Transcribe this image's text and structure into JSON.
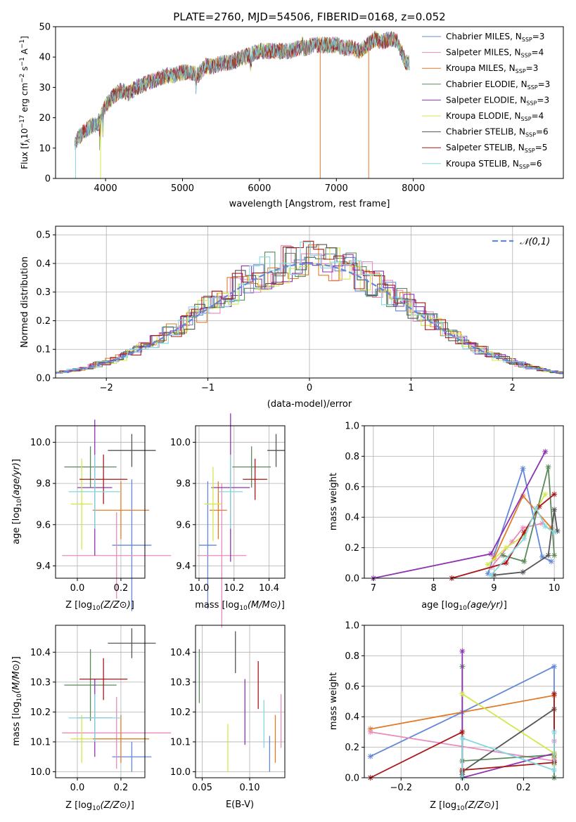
{
  "colors": {
    "blue": "#6487d9",
    "orange": "#e07b2a",
    "pink": "#e88bbd",
    "green": "#5a8a5a",
    "purple": "#8e33b0",
    "yellow": "#d4e84a",
    "dark": "#555555",
    "red": "#a81818",
    "cyan": "#84d8e0"
  },
  "chart_data": [
    {
      "id": "spectrum",
      "type": "line",
      "title": "PLATE=2760, MJD=54506, FIBERID=0168, z=0.052",
      "xlabel": "wavelength [Angstrom, rest frame]",
      "ylabel_parts": [
        "Flux [f",
        "λ",
        "10",
        "−17",
        " erg cm",
        "−2",
        " s",
        "−1",
        " A",
        "−1",
        "]"
      ],
      "xlim": [
        3350,
        9950
      ],
      "ylim": [
        0,
        50
      ],
      "xticks": [
        4000,
        5000,
        6000,
        7000,
        8000
      ],
      "yticks": [
        0,
        10,
        20,
        30,
        40,
        50
      ],
      "grid": false,
      "legend_position": "upper-right",
      "continuum": {
        "x": [
          3600,
          3700,
          3800,
          3900,
          4000,
          4100,
          4200,
          4300,
          4400,
          4500,
          4600,
          4700,
          4800,
          4900,
          5000,
          5100,
          5200,
          5300,
          5400,
          5500,
          5600,
          5700,
          5800,
          5900,
          6000,
          6100,
          6200,
          6300,
          6400,
          6500,
          6600,
          6700,
          6800,
          6900,
          7000,
          7100,
          7200,
          7300,
          7400,
          7500,
          7600,
          7700,
          7800,
          7900
        ],
        "y": [
          12,
          15,
          17,
          18,
          24,
          27,
          29,
          28,
          30,
          31,
          32,
          33,
          34,
          34,
          35,
          35,
          34,
          37,
          37,
          38,
          38,
          39,
          40,
          41,
          42,
          42,
          42,
          42,
          42,
          43,
          43,
          44,
          44,
          44,
          44,
          43,
          43,
          42,
          44,
          46,
          45,
          46,
          45,
          38
        ]
      },
      "series": [
        {
          "name": "Chabrier MILES",
          "nssp": "3",
          "color": "blue"
        },
        {
          "name": "Salpeter MILES",
          "nssp": "4",
          "color": "pink"
        },
        {
          "name": "Kroupa MILES",
          "nssp": "3",
          "color": "orange"
        },
        {
          "name": "Chabrier ELODIE",
          "nssp": "3",
          "color": "green"
        },
        {
          "name": "Salpeter ELODIE",
          "nssp": "3",
          "color": "purple"
        },
        {
          "name": "Kroupa ELODIE",
          "nssp": "4",
          "color": "yellow"
        },
        {
          "name": "Chabrier STELIB",
          "nssp": "6",
          "color": "dark"
        },
        {
          "name": "Salpeter STELIB",
          "nssp": "5",
          "color": "red"
        },
        {
          "name": "Kroupa STELIB",
          "nssp": "6",
          "color": "cyan"
        }
      ],
      "nssp_label_parts": [
        ", N",
        "SSP",
        "="
      ]
    },
    {
      "id": "residuals",
      "type": "histogram",
      "xlabel": "(data-model)/error",
      "ylabel": "Normed distribution",
      "xlim": [
        -2.5,
        2.5
      ],
      "ylim": [
        0,
        0.53
      ],
      "xticks": [
        -2,
        -1,
        0,
        1,
        2
      ],
      "yticks": [
        0.0,
        0.1,
        0.2,
        0.3,
        0.4,
        0.5
      ],
      "grid": true,
      "legend_position": "upper-right",
      "reference_curve": {
        "label": "𝒩(0,1)",
        "color": "blue",
        "style": "dashed"
      },
      "bin_width": 0.1
    },
    {
      "id": "z-age",
      "type": "errorbar",
      "xlabel": "Z [log10(Z/Z⊙)]",
      "ylabel": "age  [log10(age/yr)]",
      "xlim": [
        -0.1,
        0.31
      ],
      "ylim": [
        9.34,
        10.08
      ],
      "xticks": [
        0.0,
        0.2
      ],
      "yticks": [
        9.4,
        9.6,
        9.8,
        10.0
      ],
      "points": [
        {
          "color": "blue",
          "x": 0.25,
          "xerr": 0.09,
          "y": 9.5,
          "yerr": 0.32
        },
        {
          "color": "pink",
          "x": 0.18,
          "xerr": 0.25,
          "y": 9.45,
          "yerr": 0.21
        },
        {
          "color": "orange",
          "x": 0.2,
          "xerr": 0.13,
          "y": 9.67,
          "yerr": 0.14
        },
        {
          "color": "green",
          "x": 0.06,
          "xerr": 0.12,
          "y": 9.88,
          "yerr": 0.1
        },
        {
          "color": "purple",
          "x": 0.08,
          "xerr": 0.08,
          "y": 9.78,
          "yerr": 0.33
        },
        {
          "color": "yellow",
          "x": 0.02,
          "xerr": 0.05,
          "y": 9.7,
          "yerr": 0.22
        },
        {
          "color": "dark",
          "x": 0.25,
          "xerr": 0.11,
          "y": 9.96,
          "yerr": 0.08
        },
        {
          "color": "red",
          "x": 0.12,
          "xerr": 0.11,
          "y": 9.82,
          "yerr": 0.12
        },
        {
          "color": "cyan",
          "x": 0.08,
          "xerr": 0.12,
          "y": 9.76,
          "yerr": 0.18
        }
      ]
    },
    {
      "id": "mass-age",
      "type": "errorbar",
      "xlabel": "mass [log10(M/M⊙)]",
      "ylabel": "",
      "xlim": [
        9.98,
        10.49
      ],
      "ylim": [
        9.34,
        10.08
      ],
      "xticks": [
        10.0,
        10.2,
        10.4
      ],
      "yticks": [
        9.4,
        9.6,
        9.8,
        10.0
      ],
      "points": [
        {
          "color": "blue",
          "x": 10.05,
          "xerr": 0.05,
          "y": 9.5,
          "yerr": 0.31
        },
        {
          "color": "pink",
          "x": 10.13,
          "xerr": 0.14,
          "y": 9.45,
          "yerr": 0.35
        },
        {
          "color": "orange",
          "x": 10.11,
          "xerr": 0.05,
          "y": 9.67,
          "yerr": 0.14
        },
        {
          "color": "green",
          "x": 10.3,
          "xerr": 0.11,
          "y": 9.88,
          "yerr": 0.1
        },
        {
          "color": "purple",
          "x": 10.18,
          "xerr": 0.11,
          "y": 9.78,
          "yerr": 0.36
        },
        {
          "color": "yellow",
          "x": 10.08,
          "xerr": 0.05,
          "y": 9.7,
          "yerr": 0.18
        },
        {
          "color": "dark",
          "x": 10.44,
          "xerr": 0.05,
          "y": 9.96,
          "yerr": 0.08
        },
        {
          "color": "red",
          "x": 10.32,
          "xerr": 0.07,
          "y": 9.82,
          "yerr": 0.1
        },
        {
          "color": "cyan",
          "x": 10.18,
          "xerr": 0.07,
          "y": 9.76,
          "yerr": 0.18
        }
      ]
    },
    {
      "id": "age-weight",
      "type": "line",
      "xlabel": "age  [log10(age/yr)]",
      "ylabel": "mass weight",
      "xlim": [
        6.85,
        10.15
      ],
      "ylim": [
        0,
        1.0
      ],
      "xticks": [
        7,
        8,
        9,
        10
      ],
      "yticks": [
        0.0,
        0.2,
        0.4,
        0.6,
        0.8,
        1.0
      ],
      "grid": true,
      "series": [
        {
          "color": "blue",
          "x": [
            8.9,
            9.48,
            9.8,
            9.95
          ],
          "y": [
            0.03,
            0.72,
            0.14,
            0.11
          ]
        },
        {
          "color": "orange",
          "x": [
            9.0,
            9.48,
            9.95
          ],
          "y": [
            0.13,
            0.54,
            0.33
          ]
        },
        {
          "color": "pink",
          "x": [
            8.95,
            9.3,
            9.48,
            9.8
          ],
          "y": [
            0.07,
            0.24,
            0.33,
            0.36
          ]
        },
        {
          "color": "green",
          "x": [
            9.15,
            9.5,
            9.9,
            10.0
          ],
          "y": [
            0.15,
            0.11,
            0.73,
            0.15
          ]
        },
        {
          "color": "purple",
          "x": [
            7.0,
            8.95,
            9.85
          ],
          "y": [
            0.0,
            0.16,
            0.83
          ]
        },
        {
          "color": "yellow",
          "x": [
            8.9,
            9.2,
            9.5,
            9.7,
            9.85
          ],
          "y": [
            0.09,
            0.2,
            0.28,
            0.45,
            0.55
          ]
        },
        {
          "color": "dark",
          "x": [
            9.0,
            9.48,
            9.9,
            10.0,
            10.05
          ],
          "y": [
            0.02,
            0.04,
            0.15,
            0.45,
            0.31
          ]
        },
        {
          "color": "red",
          "x": [
            8.3,
            9.2,
            9.5,
            9.75,
            10.0
          ],
          "y": [
            0.0,
            0.1,
            0.3,
            0.47,
            0.55
          ]
        },
        {
          "color": "cyan",
          "x": [
            8.95,
            9.5,
            9.7,
            9.85,
            10.0
          ],
          "y": [
            0.02,
            0.26,
            0.46,
            0.34,
            0.3
          ]
        }
      ]
    },
    {
      "id": "z-mass",
      "type": "errorbar",
      "xlabel": "Z [log10(Z/Z⊙)]",
      "ylabel": "mass [log10(M/M⊙)]",
      "xlim": [
        -0.1,
        0.31
      ],
      "ylim": [
        9.98,
        10.49
      ],
      "xticks": [
        0.0,
        0.2
      ],
      "yticks": [
        10.0,
        10.1,
        10.2,
        10.3,
        10.4
      ],
      "points": [
        {
          "color": "blue",
          "x": 0.25,
          "xerr": 0.09,
          "y": 10.05,
          "yerr": 0.05
        },
        {
          "color": "pink",
          "x": 0.18,
          "xerr": 0.25,
          "y": 10.13,
          "yerr": 0.12
        },
        {
          "color": "orange",
          "x": 0.2,
          "xerr": 0.13,
          "y": 10.11,
          "yerr": 0.08
        },
        {
          "color": "green",
          "x": 0.06,
          "xerr": 0.12,
          "y": 10.29,
          "yerr": 0.12
        },
        {
          "color": "purple",
          "x": 0.08,
          "xerr": 0.08,
          "y": 10.18,
          "yerr": 0.13
        },
        {
          "color": "yellow",
          "x": 0.02,
          "xerr": 0.05,
          "y": 10.11,
          "yerr": 0.08
        },
        {
          "color": "dark",
          "x": 0.25,
          "xerr": 0.11,
          "y": 10.43,
          "yerr": 0.05
        },
        {
          "color": "red",
          "x": 0.12,
          "xerr": 0.11,
          "y": 10.31,
          "yerr": 0.07
        },
        {
          "color": "cyan",
          "x": 0.08,
          "xerr": 0.12,
          "y": 10.18,
          "yerr": 0.08
        }
      ]
    },
    {
      "id": "ebv-mass",
      "type": "errorbar",
      "xlabel": "E(B-V)",
      "ylabel": "",
      "xlim": [
        0.043,
        0.137
      ],
      "ylim": [
        9.98,
        10.49
      ],
      "xticks": [
        0.05,
        0.1
      ],
      "yticks": [
        10.0,
        10.1,
        10.2,
        10.3,
        10.4
      ],
      "points": [
        {
          "color": "green",
          "x": 0.047,
          "xerr": 0,
          "y": 10.32,
          "yerr": 0.09
        },
        {
          "color": "yellow",
          "x": 0.077,
          "xerr": 0,
          "y": 10.08,
          "yerr": 0.08
        },
        {
          "color": "dark",
          "x": 0.085,
          "xerr": 0,
          "y": 10.4,
          "yerr": 0.07
        },
        {
          "color": "purple",
          "x": 0.095,
          "xerr": 0,
          "y": 10.2,
          "yerr": 0.11
        },
        {
          "color": "red",
          "x": 0.109,
          "xerr": 0,
          "y": 10.29,
          "yerr": 0.08
        },
        {
          "color": "cyan",
          "x": 0.115,
          "xerr": 0,
          "y": 10.16,
          "yerr": 0.08
        },
        {
          "color": "blue",
          "x": 0.121,
          "xerr": 0,
          "y": 10.06,
          "yerr": 0.06
        },
        {
          "color": "orange",
          "x": 0.127,
          "xerr": 0,
          "y": 10.11,
          "yerr": 0.08
        },
        {
          "color": "pink",
          "x": 0.133,
          "xerr": 0,
          "y": 10.17,
          "yerr": 0.09
        }
      ]
    },
    {
      "id": "z-weight",
      "type": "line",
      "xlabel": "Z [log10(Z/Z⊙)]",
      "ylabel": "mass weight",
      "xlim": [
        -0.32,
        0.33
      ],
      "ylim": [
        0,
        1.0
      ],
      "xticks": [
        -0.2,
        0.0,
        0.2
      ],
      "yticks": [
        0.0,
        0.2,
        0.4,
        0.6,
        0.8,
        1.0
      ],
      "grid": true,
      "series": [
        {
          "color": "blue",
          "x": [
            -0.3,
            0.0,
            0.3,
            0.3
          ],
          "y": [
            0.14,
            0.43,
            0.73,
            0.11
          ]
        },
        {
          "color": "orange",
          "x": [
            -0.3,
            0.3,
            0.3
          ],
          "y": [
            0.32,
            0.54,
            0.13
          ]
        },
        {
          "color": "pink",
          "x": [
            -0.3,
            0.3,
            0.3
          ],
          "y": [
            0.3,
            0.11,
            0.24
          ]
        },
        {
          "color": "green",
          "x": [
            0.0,
            0.0,
            0.3,
            0.3
          ],
          "y": [
            0.73,
            0.11,
            0.15,
            0.0
          ]
        },
        {
          "color": "purple",
          "x": [
            0.0,
            0.0,
            0.3,
            0.3
          ],
          "y": [
            0.83,
            0.0,
            0.16,
            0.09
          ]
        },
        {
          "color": "yellow",
          "x": [
            0.0,
            0.3,
            0.3
          ],
          "y": [
            0.55,
            0.16,
            0.09
          ]
        },
        {
          "color": "dark",
          "x": [
            0.0,
            0.0,
            0.3,
            0.3
          ],
          "y": [
            0.02,
            0.04,
            0.45,
            0.1
          ]
        },
        {
          "color": "red",
          "x": [
            -0.3,
            0.0,
            0.0,
            0.3,
            0.3
          ],
          "y": [
            0.0,
            0.3,
            0.05,
            0.1,
            0.55
          ]
        },
        {
          "color": "cyan",
          "x": [
            0.0,
            0.0,
            0.3,
            0.3
          ],
          "y": [
            0.0,
            0.26,
            0.05,
            0.3
          ]
        }
      ]
    }
  ]
}
